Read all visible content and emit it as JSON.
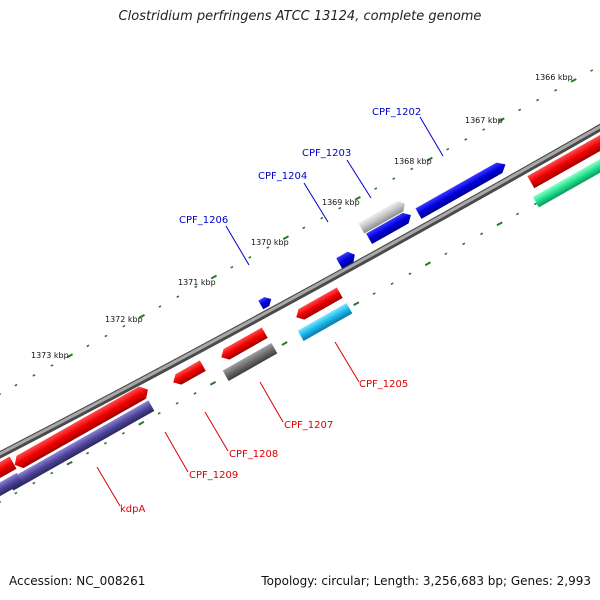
{
  "title": "Clostridium perfringens ATCC 13124, complete genome",
  "footer": {
    "accession": "Accession: NC_008261",
    "summary": "Topology: circular; Length: 3,256,683 bp; Genes: 2,993"
  },
  "colors": {
    "forward_label": "#0000cc",
    "reverse_label": "#dd0000",
    "backbone": "#8a8a8a",
    "tick": "#2a7a2a"
  },
  "scale_labels": [
    "1366 kbp",
    "1367 kbp",
    "1368 kbp",
    "1369 kbp",
    "1370 kbp",
    "1371 kbp",
    "1372 kbp",
    "1373 kbp"
  ],
  "gene_labels": {
    "cpf1202": "CPF_1202",
    "cpf1203": "CPF_1203",
    "cpf1204": "CPF_1204",
    "cpf1206": "CPF_1206",
    "cpf1205": "CPF_1205",
    "cpf1207": "CPF_1207",
    "cpf1208": "CPF_1208",
    "cpf1209": "CPF_1209",
    "kdpa": "kdpA"
  }
}
